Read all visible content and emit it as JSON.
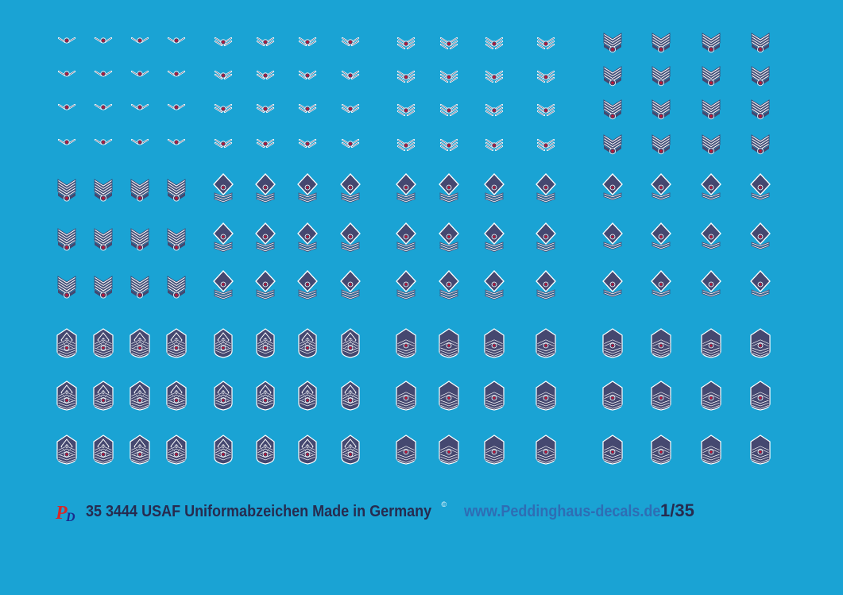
{
  "sheet": {
    "background": "#1aa3d4",
    "insignia_fill": "#454870",
    "insignia_stripe": "#ffffff",
    "insignia_star": "#c8102e",
    "blocks": [
      {
        "name": "enlisted-block-1",
        "rows": [
          {
            "rank": "airman",
            "count": 4
          },
          {
            "rank": "airman",
            "count": 4
          },
          {
            "rank": "airman",
            "count": 4
          },
          {
            "rank": "airman",
            "count": 4
          },
          {
            "rank": "technical-sergeant",
            "count": 4
          },
          {
            "rank": "technical-sergeant",
            "count": 4
          },
          {
            "rank": "technical-sergeant",
            "count": 4
          },
          {
            "rank": "chief-master-sergeant-first",
            "count": 4
          },
          {
            "rank": "chief-master-sergeant-first",
            "count": 4
          },
          {
            "rank": "chief-master-sergeant-first",
            "count": 4
          }
        ]
      },
      {
        "name": "enlisted-block-2",
        "rows": [
          {
            "rank": "airman-first-class",
            "count": 4
          },
          {
            "rank": "airman-first-class",
            "count": 4
          },
          {
            "rank": "airman-first-class",
            "count": 4
          },
          {
            "rank": "airman-first-class",
            "count": 4
          },
          {
            "rank": "master-sergeant-first",
            "count": 4
          },
          {
            "rank": "master-sergeant-first",
            "count": 4
          },
          {
            "rank": "master-sergeant-first",
            "count": 4
          },
          {
            "rank": "senior-master-sergeant-first",
            "count": 4
          },
          {
            "rank": "senior-master-sergeant-first",
            "count": 4
          },
          {
            "rank": "senior-master-sergeant-first",
            "count": 4
          }
        ]
      },
      {
        "name": "enlisted-block-3",
        "rows": [
          {
            "rank": "senior-airman",
            "count": 4
          },
          {
            "rank": "senior-airman",
            "count": 4
          },
          {
            "rank": "senior-airman",
            "count": 4
          },
          {
            "rank": "senior-airman",
            "count": 4
          },
          {
            "rank": "master-sergeant-first",
            "count": 4
          },
          {
            "rank": "master-sergeant-first",
            "count": 4
          },
          {
            "rank": "master-sergeant-first",
            "count": 4
          },
          {
            "rank": "chief-master-sergeant",
            "count": 4
          },
          {
            "rank": "chief-master-sergeant",
            "count": 4
          },
          {
            "rank": "chief-master-sergeant",
            "count": 4
          }
        ]
      },
      {
        "name": "enlisted-block-4",
        "rows": [
          {
            "rank": "staff-sergeant",
            "count": 4
          },
          {
            "rank": "staff-sergeant",
            "count": 4
          },
          {
            "rank": "staff-sergeant",
            "count": 4
          },
          {
            "rank": "staff-sergeant",
            "count": 4
          },
          {
            "rank": "senior-master-sergeant",
            "count": 4
          },
          {
            "rank": "senior-master-sergeant",
            "count": 4
          },
          {
            "rank": "master-sergeant",
            "count": 4
          },
          {
            "rank": "chief-master-sergeant",
            "count": 4
          },
          {
            "rank": "chief-master-sergeant",
            "count": 4
          },
          {
            "rank": "chief-master-sergeant",
            "count": 4
          }
        ]
      }
    ]
  },
  "footer": {
    "logo_p": "P",
    "logo_d": "D",
    "product": "35 3444 USAF Uniformabzeichen  Made in Germany",
    "copyright": "©",
    "url": "www.Peddinghaus-decals.de",
    "scale": "1/35"
  }
}
